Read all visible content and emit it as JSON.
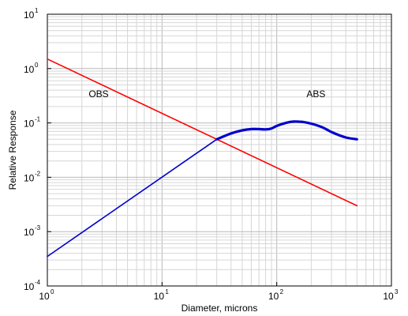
{
  "chart_data": {
    "type": "line",
    "xscale": "log",
    "yscale": "log",
    "xlim": [
      1,
      1000
    ],
    "ylim": [
      0.0001,
      10
    ],
    "x_ticks": [
      1,
      10,
      100,
      1000
    ],
    "x_tick_labels": [
      {
        "base": "10",
        "exp": "0"
      },
      {
        "base": "10",
        "exp": "1"
      },
      {
        "base": "10",
        "exp": "2"
      },
      {
        "base": "10",
        "exp": "3"
      }
    ],
    "y_ticks": [
      0.0001,
      0.001,
      0.01,
      0.1,
      1,
      10
    ],
    "y_tick_labels": [
      {
        "base": "10",
        "exp": "-4"
      },
      {
        "base": "10",
        "exp": "-3"
      },
      {
        "base": "10",
        "exp": "-2"
      },
      {
        "base": "10",
        "exp": "-1"
      },
      {
        "base": "10",
        "exp": "0"
      },
      {
        "base": "10",
        "exp": "1"
      }
    ],
    "xlabel": "Diameter, microns",
    "ylabel": "Relative Response",
    "grid": true,
    "series": [
      {
        "name": "OBS",
        "color": "#ff0000",
        "points": [
          [
            1,
            1.5
          ],
          [
            500,
            0.003
          ]
        ]
      },
      {
        "name": "ABS",
        "color": "#0000cc",
        "points": [
          [
            1,
            0.00035
          ],
          [
            30,
            0.05
          ],
          [
            40,
            0.064
          ],
          [
            50,
            0.073
          ],
          [
            60,
            0.077
          ],
          [
            70,
            0.077
          ],
          [
            80,
            0.076
          ],
          [
            90,
            0.079
          ],
          [
            100,
            0.088
          ],
          [
            120,
            0.1
          ],
          [
            140,
            0.106
          ],
          [
            170,
            0.104
          ],
          [
            200,
            0.097
          ],
          [
            250,
            0.083
          ],
          [
            300,
            0.068
          ],
          [
            400,
            0.054
          ],
          [
            500,
            0.05
          ]
        ]
      }
    ],
    "annotations": [
      {
        "text": "OBS",
        "x": 2.8,
        "y": 0.3
      },
      {
        "text": "ABS",
        "x": 220,
        "y": 0.3
      }
    ]
  }
}
